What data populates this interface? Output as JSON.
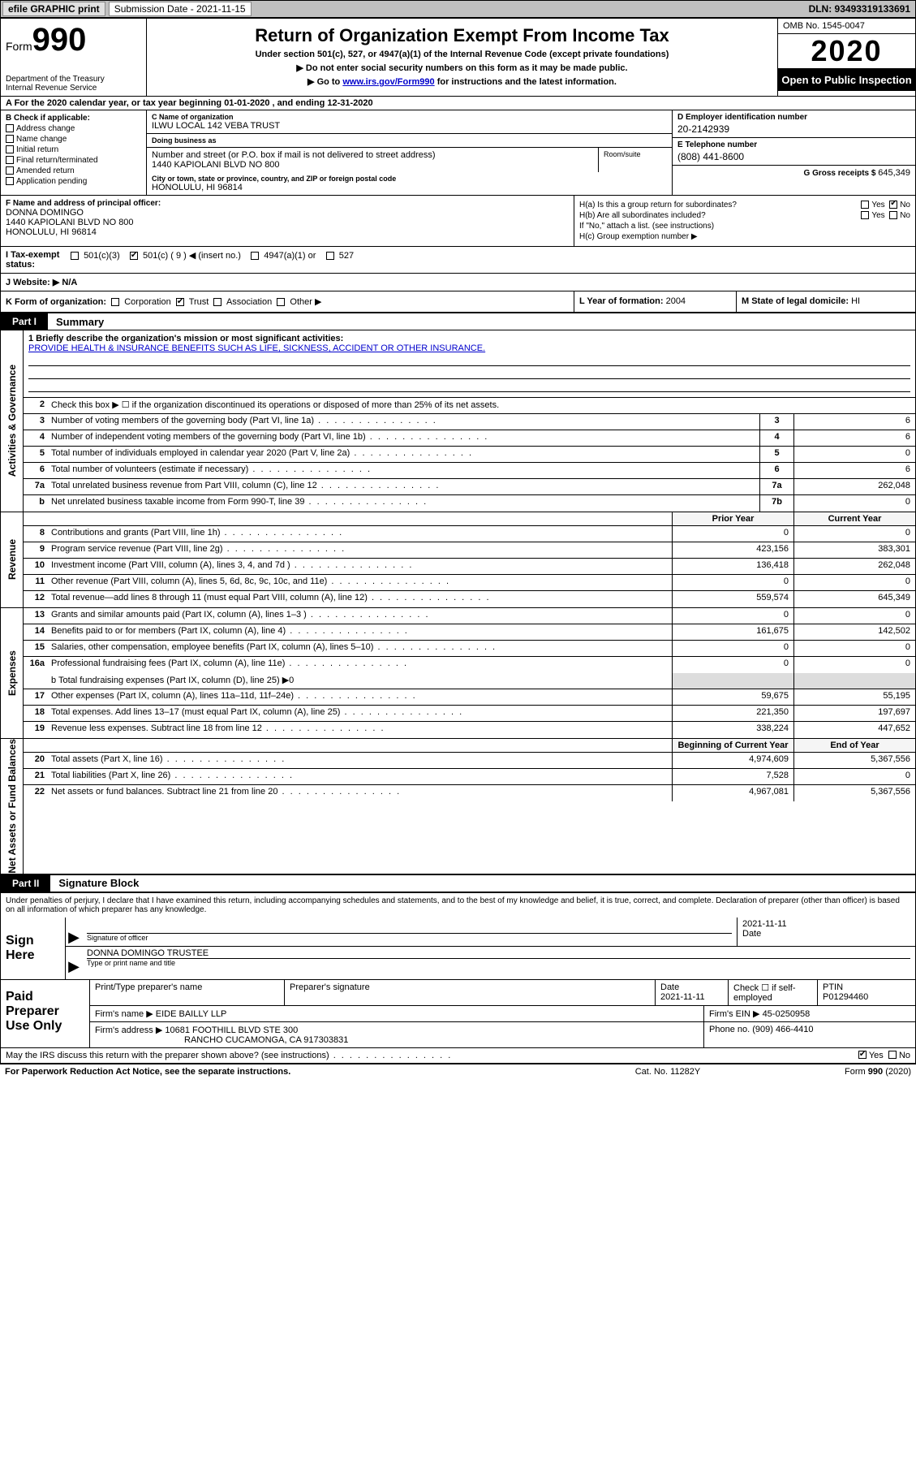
{
  "topbar": {
    "efile": "efile GRAPHIC print",
    "submission_label": "Submission Date - 2021-11-15",
    "dln": "DLN: 93493319133691"
  },
  "header": {
    "form_prefix": "Form",
    "form_number": "990",
    "dept": "Department of the Treasury\nInternal Revenue Service",
    "title": "Return of Organization Exempt From Income Tax",
    "sub1": "Under section 501(c), 527, or 4947(a)(1) of the Internal Revenue Code (except private foundations)",
    "sub2": "▶ Do not enter social security numbers on this form as it may be made public.",
    "sub3_pre": "▶ Go to ",
    "sub3_link": "www.irs.gov/Form990",
    "sub3_post": " for instructions and the latest information.",
    "omb": "OMB No. 1545-0047",
    "year": "2020",
    "open": "Open to Public Inspection"
  },
  "rowA": "A For the 2020 calendar year, or tax year beginning 01-01-2020    , and ending 12-31-2020",
  "colB": {
    "header": "B Check if applicable:",
    "opts": [
      "Address change",
      "Name change",
      "Initial return",
      "Final return/terminated",
      "Amended return",
      "Application pending"
    ]
  },
  "colC": {
    "name_lab": "C Name of organization",
    "name": "ILWU LOCAL 142 VEBA TRUST",
    "dba_lab": "Doing business as",
    "dba": "",
    "addr_lab": "Number and street (or P.O. box if mail is not delivered to street address)",
    "room_lab": "Room/suite",
    "addr": "1440 KAPIOLANI BLVD NO 800",
    "city_lab": "City or town, state or province, country, and ZIP or foreign postal code",
    "city": "HONOLULU, HI  96814"
  },
  "colDE": {
    "d_lab": "D Employer identification number",
    "d_val": "20-2142939",
    "e_lab": "E Telephone number",
    "e_val": "(808) 441-8600",
    "g_lab": "G Gross receipts $ ",
    "g_val": "645,349"
  },
  "rowF": {
    "lab": "F Name and address of principal officer:",
    "name": "DONNA DOMINGO",
    "addr": "1440 KAPIOLANI BLVD NO 800\nHONOLULU, HI  96814"
  },
  "rowH": {
    "a": "H(a)  Is this a group return for subordinates?",
    "a_ans": "No",
    "b": "H(b)  Are all subordinates included?",
    "b_note": "If \"No,\" attach a list. (see instructions)",
    "c": "H(c)  Group exemption number ▶"
  },
  "rowI": {
    "lab": "I  Tax-exempt status:",
    "opts": [
      "501(c)(3)",
      "501(c) ( 9 ) ◀ (insert no.)",
      "4947(a)(1) or",
      "527"
    ],
    "checked_index": 1
  },
  "rowJ": {
    "lab": "J  Website: ▶",
    "val": "N/A"
  },
  "rowK": {
    "lab": "K Form of organization:",
    "opts": [
      "Corporation",
      "Trust",
      "Association",
      "Other ▶"
    ],
    "checked_index": 1
  },
  "rowL": {
    "lab": "L Year of formation:",
    "val": "2004"
  },
  "rowM": {
    "lab": "M State of legal domicile:",
    "val": "HI"
  },
  "partI": {
    "tab": "Part I",
    "title": "Summary"
  },
  "gov": {
    "label": "Activities & Governance",
    "q1_lab": "1  Briefly describe the organization's mission or most significant activities:",
    "q1_val": "PROVIDE HEALTH & INSURANCE BENEFITS SUCH AS LIFE, SICKNESS, ACCIDENT OR OTHER INSURANCE.",
    "q2": "Check this box ▶ ☐ if the organization discontinued its operations or disposed of more than 25% of its net assets.",
    "rows": [
      {
        "n": "3",
        "d": "Number of voting members of the governing body (Part VI, line 1a)",
        "box": "3",
        "v": "6"
      },
      {
        "n": "4",
        "d": "Number of independent voting members of the governing body (Part VI, line 1b)",
        "box": "4",
        "v": "6"
      },
      {
        "n": "5",
        "d": "Total number of individuals employed in calendar year 2020 (Part V, line 2a)",
        "box": "5",
        "v": "0"
      },
      {
        "n": "6",
        "d": "Total number of volunteers (estimate if necessary)",
        "box": "6",
        "v": "6"
      },
      {
        "n": "7a",
        "d": "Total unrelated business revenue from Part VIII, column (C), line 12",
        "box": "7a",
        "v": "262,048"
      },
      {
        "n": "b",
        "d": "Net unrelated business taxable income from Form 990-T, line 39",
        "box": "7b",
        "v": "0"
      }
    ]
  },
  "twocol": {
    "prior": "Prior Year",
    "current": "Current Year"
  },
  "rev": {
    "label": "Revenue",
    "rows": [
      {
        "n": "8",
        "d": "Contributions and grants (Part VIII, line 1h)",
        "p": "0",
        "c": "0"
      },
      {
        "n": "9",
        "d": "Program service revenue (Part VIII, line 2g)",
        "p": "423,156",
        "c": "383,301"
      },
      {
        "n": "10",
        "d": "Investment income (Part VIII, column (A), lines 3, 4, and 7d )",
        "p": "136,418",
        "c": "262,048"
      },
      {
        "n": "11",
        "d": "Other revenue (Part VIII, column (A), lines 5, 6d, 8c, 9c, 10c, and 11e)",
        "p": "0",
        "c": "0"
      },
      {
        "n": "12",
        "d": "Total revenue—add lines 8 through 11 (must equal Part VIII, column (A), line 12)",
        "p": "559,574",
        "c": "645,349"
      }
    ]
  },
  "exp": {
    "label": "Expenses",
    "rows": [
      {
        "n": "13",
        "d": "Grants and similar amounts paid (Part IX, column (A), lines 1–3 )",
        "p": "0",
        "c": "0"
      },
      {
        "n": "14",
        "d": "Benefits paid to or for members (Part IX, column (A), line 4)",
        "p": "161,675",
        "c": "142,502"
      },
      {
        "n": "15",
        "d": "Salaries, other compensation, employee benefits (Part IX, column (A), lines 5–10)",
        "p": "0",
        "c": "0"
      },
      {
        "n": "16a",
        "d": "Professional fundraising fees (Part IX, column (A), line 11e)",
        "p": "0",
        "c": "0"
      }
    ],
    "row_b": "b  Total fundraising expenses (Part IX, column (D), line 25) ▶0",
    "rows2": [
      {
        "n": "17",
        "d": "Other expenses (Part IX, column (A), lines 11a–11d, 11f–24e)",
        "p": "59,675",
        "c": "55,195"
      },
      {
        "n": "18",
        "d": "Total expenses. Add lines 13–17 (must equal Part IX, column (A), line 25)",
        "p": "221,350",
        "c": "197,697"
      },
      {
        "n": "19",
        "d": "Revenue less expenses. Subtract line 18 from line 12",
        "p": "338,224",
        "c": "447,652"
      }
    ]
  },
  "net": {
    "label": "Net Assets or Fund Balances",
    "hdr_p": "Beginning of Current Year",
    "hdr_c": "End of Year",
    "rows": [
      {
        "n": "20",
        "d": "Total assets (Part X, line 16)",
        "p": "4,974,609",
        "c": "5,367,556"
      },
      {
        "n": "21",
        "d": "Total liabilities (Part X, line 26)",
        "p": "7,528",
        "c": "0"
      },
      {
        "n": "22",
        "d": "Net assets or fund balances. Subtract line 21 from line 20",
        "p": "4,967,081",
        "c": "5,367,556"
      }
    ]
  },
  "partII": {
    "tab": "Part II",
    "title": "Signature Block"
  },
  "sig": {
    "intro": "Under penalties of perjury, I declare that I have examined this return, including accompanying schedules and statements, and to the best of my knowledge and belief, it is true, correct, and complete. Declaration of preparer (other than officer) is based on all information of which preparer has any knowledge.",
    "here": "Sign Here",
    "officer_cap": "Signature of officer",
    "date_cap": "Date",
    "date_val": "2021-11-11",
    "name": "DONNA DOMINGO  TRUSTEE",
    "name_cap": "Type or print name and title"
  },
  "paid": {
    "left": "Paid Preparer Use Only",
    "h1": "Print/Type preparer's name",
    "h2": "Preparer's signature",
    "h3": "Date",
    "h3v": "2021-11-11",
    "h4": "Check ☐ if self-employed",
    "h5": "PTIN",
    "h5v": "P01294460",
    "firm_lab": "Firm's name    ▶",
    "firm": "EIDE BAILLY LLP",
    "ein_lab": "Firm's EIN ▶",
    "ein": "45-0250958",
    "addr_lab": "Firm's address ▶",
    "addr1": "10681 FOOTHILL BLVD STE 300",
    "addr2": "RANCHO CUCAMONGA, CA  917303831",
    "phone_lab": "Phone no.",
    "phone": "(909) 466-4410"
  },
  "footer": {
    "discuss": "May the IRS discuss this return with the preparer shown above? (see instructions)",
    "yes": "Yes",
    "no": "No",
    "pra": "For Paperwork Reduction Act Notice, see the separate instructions.",
    "cat": "Cat. No. 11282Y",
    "form": "Form 990 (2020)"
  }
}
